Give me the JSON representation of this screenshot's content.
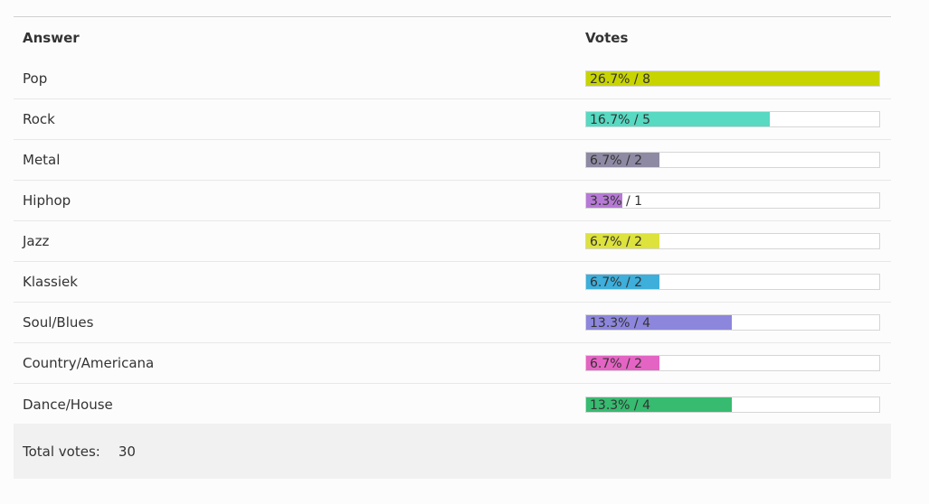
{
  "header": {
    "answer_label": "Answer",
    "votes_label": "Votes"
  },
  "rows": [
    {
      "answer": "Pop",
      "percent": 26.7,
      "label": "26.7% / 8",
      "color": "#c8d400"
    },
    {
      "answer": "Rock",
      "percent": 16.7,
      "label": "16.7% / 5",
      "color": "#57d9c2"
    },
    {
      "answer": "Metal",
      "percent": 6.7,
      "label": "6.7% / 2",
      "color": "#8f8aa3"
    },
    {
      "answer": "Hiphop",
      "percent": 3.3,
      "label": "3.3% / 1",
      "color": "#b779d6"
    },
    {
      "answer": "Jazz",
      "percent": 6.7,
      "label": "6.7% / 2",
      "color": "#dde23d"
    },
    {
      "answer": "Klassiek",
      "percent": 6.7,
      "label": "6.7% / 2",
      "color": "#3eaedb"
    },
    {
      "answer": "Soul/Blues",
      "percent": 13.3,
      "label": "13.3% / 4",
      "color": "#8d86dd"
    },
    {
      "answer": "Country/Americana",
      "percent": 6.7,
      "label": "6.7% / 2",
      "color": "#e464c3"
    },
    {
      "answer": "Dance/House",
      "percent": 13.3,
      "label": "13.3% / 4",
      "color": "#37bb70"
    }
  ],
  "max_percent": 26.7,
  "total": {
    "label": "Total votes:",
    "value": "30"
  }
}
